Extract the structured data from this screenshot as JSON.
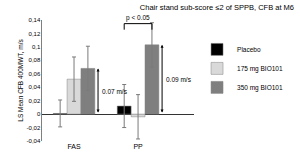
{
  "chart_data": {
    "type": "bar",
    "title": "Chair stand sub-score ≤2 of SPPB, CFB at M6",
    "y_label": "LS Mean CFB 400MWT, m/s",
    "categories": [
      "FAS",
      "PP"
    ],
    "series": [
      {
        "name": "Placebo",
        "color": "#000000",
        "values": [
          0.001,
          0.012
        ],
        "error": [
          0.02,
          0.032
        ]
      },
      {
        "name": "175 mg BIO101",
        "color": "#d9d9d9",
        "values": [
          0.052,
          -0.004
        ],
        "error": [
          0.033,
          0.033
        ]
      },
      {
        "name": "350 mg BIO101",
        "color": "#7f7f7f",
        "values": [
          0.068,
          0.103
        ],
        "error": [
          0.033,
          0.033
        ]
      }
    ],
    "ylim": [
      -0.04,
      0.14
    ],
    "yticks": [
      {
        "value": -0.04,
        "label": "-0,04"
      },
      {
        "value": -0.02,
        "label": "-0,02"
      },
      0,
      {
        "value": 0.02,
        "label": "0,02"
      },
      {
        "value": 0.04,
        "label": "0,04"
      },
      {
        "value": 0.06,
        "label": "0,06"
      },
      {
        "value": 0.08,
        "label": "0,08"
      },
      {
        "value": 0.1,
        "label": "0,1"
      },
      {
        "value": 0.12,
        "label": "0,12"
      },
      {
        "value": 0.14,
        "label": "0,14"
      }
    ],
    "grid": false,
    "legend": "right",
    "annotations": [
      {
        "text": "0.07 m/s",
        "category": "FAS",
        "series": "350 mg BIO101"
      },
      {
        "text": "0.09 m/s",
        "category": "PP",
        "series": "350 mg BIO101"
      },
      {
        "text": "p < 0.05",
        "category": "PP"
      }
    ]
  }
}
